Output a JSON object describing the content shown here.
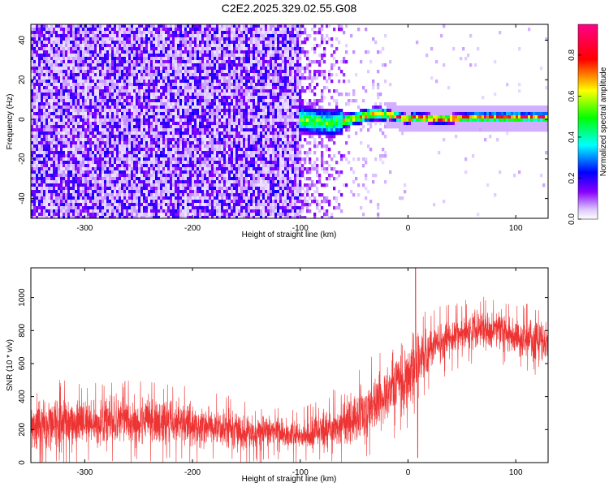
{
  "title": "C2E2.2025.329.02.55.G08",
  "colors": {
    "snr_line": "#ee3333",
    "background": "#ffffff",
    "axis": "#000000"
  },
  "chart_data": [
    {
      "type": "heatmap",
      "xlabel": "Height of straight line (km)",
      "ylabel": "Frequency (Hz)",
      "xlim": [
        -350,
        130
      ],
      "ylim": [
        -50,
        48
      ],
      "x_ticks": [
        -300,
        -200,
        -100,
        0,
        100
      ],
      "x_tick_labels": [
        "-300",
        "-200",
        "-100",
        "0",
        "100"
      ],
      "y_ticks": [
        -40,
        -20,
        0,
        20,
        40
      ],
      "y_tick_labels": [
        "-40",
        "-20",
        "0",
        "20",
        "40"
      ],
      "colorbar": {
        "label": "Normalized spectral amplitude",
        "range": [
          0,
          0.95
        ],
        "ticks": [
          0.0,
          0.2,
          0.4,
          0.6,
          0.8
        ],
        "tick_labels": [
          "0.0",
          "0.2",
          "0.4",
          "0.6",
          "0.8"
        ],
        "colormap": [
          "#ffffff",
          "#8800ff",
          "#0000ff",
          "#00ffff",
          "#00ff00",
          "#ffff00",
          "#ff0000",
          "#ff00aa"
        ]
      },
      "ridge": [
        {
          "x": -100,
          "f": 0
        },
        {
          "x": -70,
          "f": -2
        },
        {
          "x": -45,
          "f": 1
        },
        {
          "x": -30,
          "f": 3
        },
        {
          "x": -15,
          "f": 2
        },
        {
          "x": 0,
          "f": 0
        },
        {
          "x": 5,
          "f": 1
        },
        {
          "x": 30,
          "f": 0
        },
        {
          "x": 60,
          "f": 1
        },
        {
          "x": 100,
          "f": 1
        },
        {
          "x": 130,
          "f": 1
        }
      ],
      "grid": false
    },
    {
      "type": "line",
      "xlabel": "Height of straight line (km)",
      "ylabel": "SNR (10 * v/v)",
      "xlim": [
        -350,
        130
      ],
      "ylim": [
        0,
        1180
      ],
      "x_ticks": [
        -300,
        -200,
        -100,
        0,
        100
      ],
      "x_tick_labels": [
        "-300",
        "-200",
        "-100",
        "0",
        "100"
      ],
      "y_ticks": [
        0,
        200,
        400,
        600,
        800,
        1000
      ],
      "y_tick_labels": [
        "0",
        "200",
        "400",
        "600",
        "800",
        "1000"
      ],
      "envelope": [
        {
          "x": -350,
          "low": 0,
          "high": 480
        },
        {
          "x": -300,
          "low": 40,
          "high": 440
        },
        {
          "x": -250,
          "low": 40,
          "high": 460
        },
        {
          "x": -200,
          "low": 40,
          "high": 420
        },
        {
          "x": -150,
          "low": 30,
          "high": 340
        },
        {
          "x": -100,
          "low": 20,
          "high": 300
        },
        {
          "x": -75,
          "low": 30,
          "high": 380
        },
        {
          "x": -50,
          "low": 40,
          "high": 480
        },
        {
          "x": -25,
          "low": 120,
          "high": 650
        },
        {
          "x": 0,
          "low": 250,
          "high": 820
        },
        {
          "x": 10,
          "low": 400,
          "high": 850
        },
        {
          "x": 25,
          "low": 530,
          "high": 900
        },
        {
          "x": 50,
          "low": 620,
          "high": 950
        },
        {
          "x": 75,
          "low": 650,
          "high": 980
        },
        {
          "x": 100,
          "low": 600,
          "high": 930
        },
        {
          "x": 130,
          "low": 540,
          "high": 900
        }
      ],
      "spikes": [
        {
          "x": 7,
          "value": 1180
        },
        {
          "x": 9,
          "value": 30
        }
      ],
      "grid": false
    }
  ]
}
